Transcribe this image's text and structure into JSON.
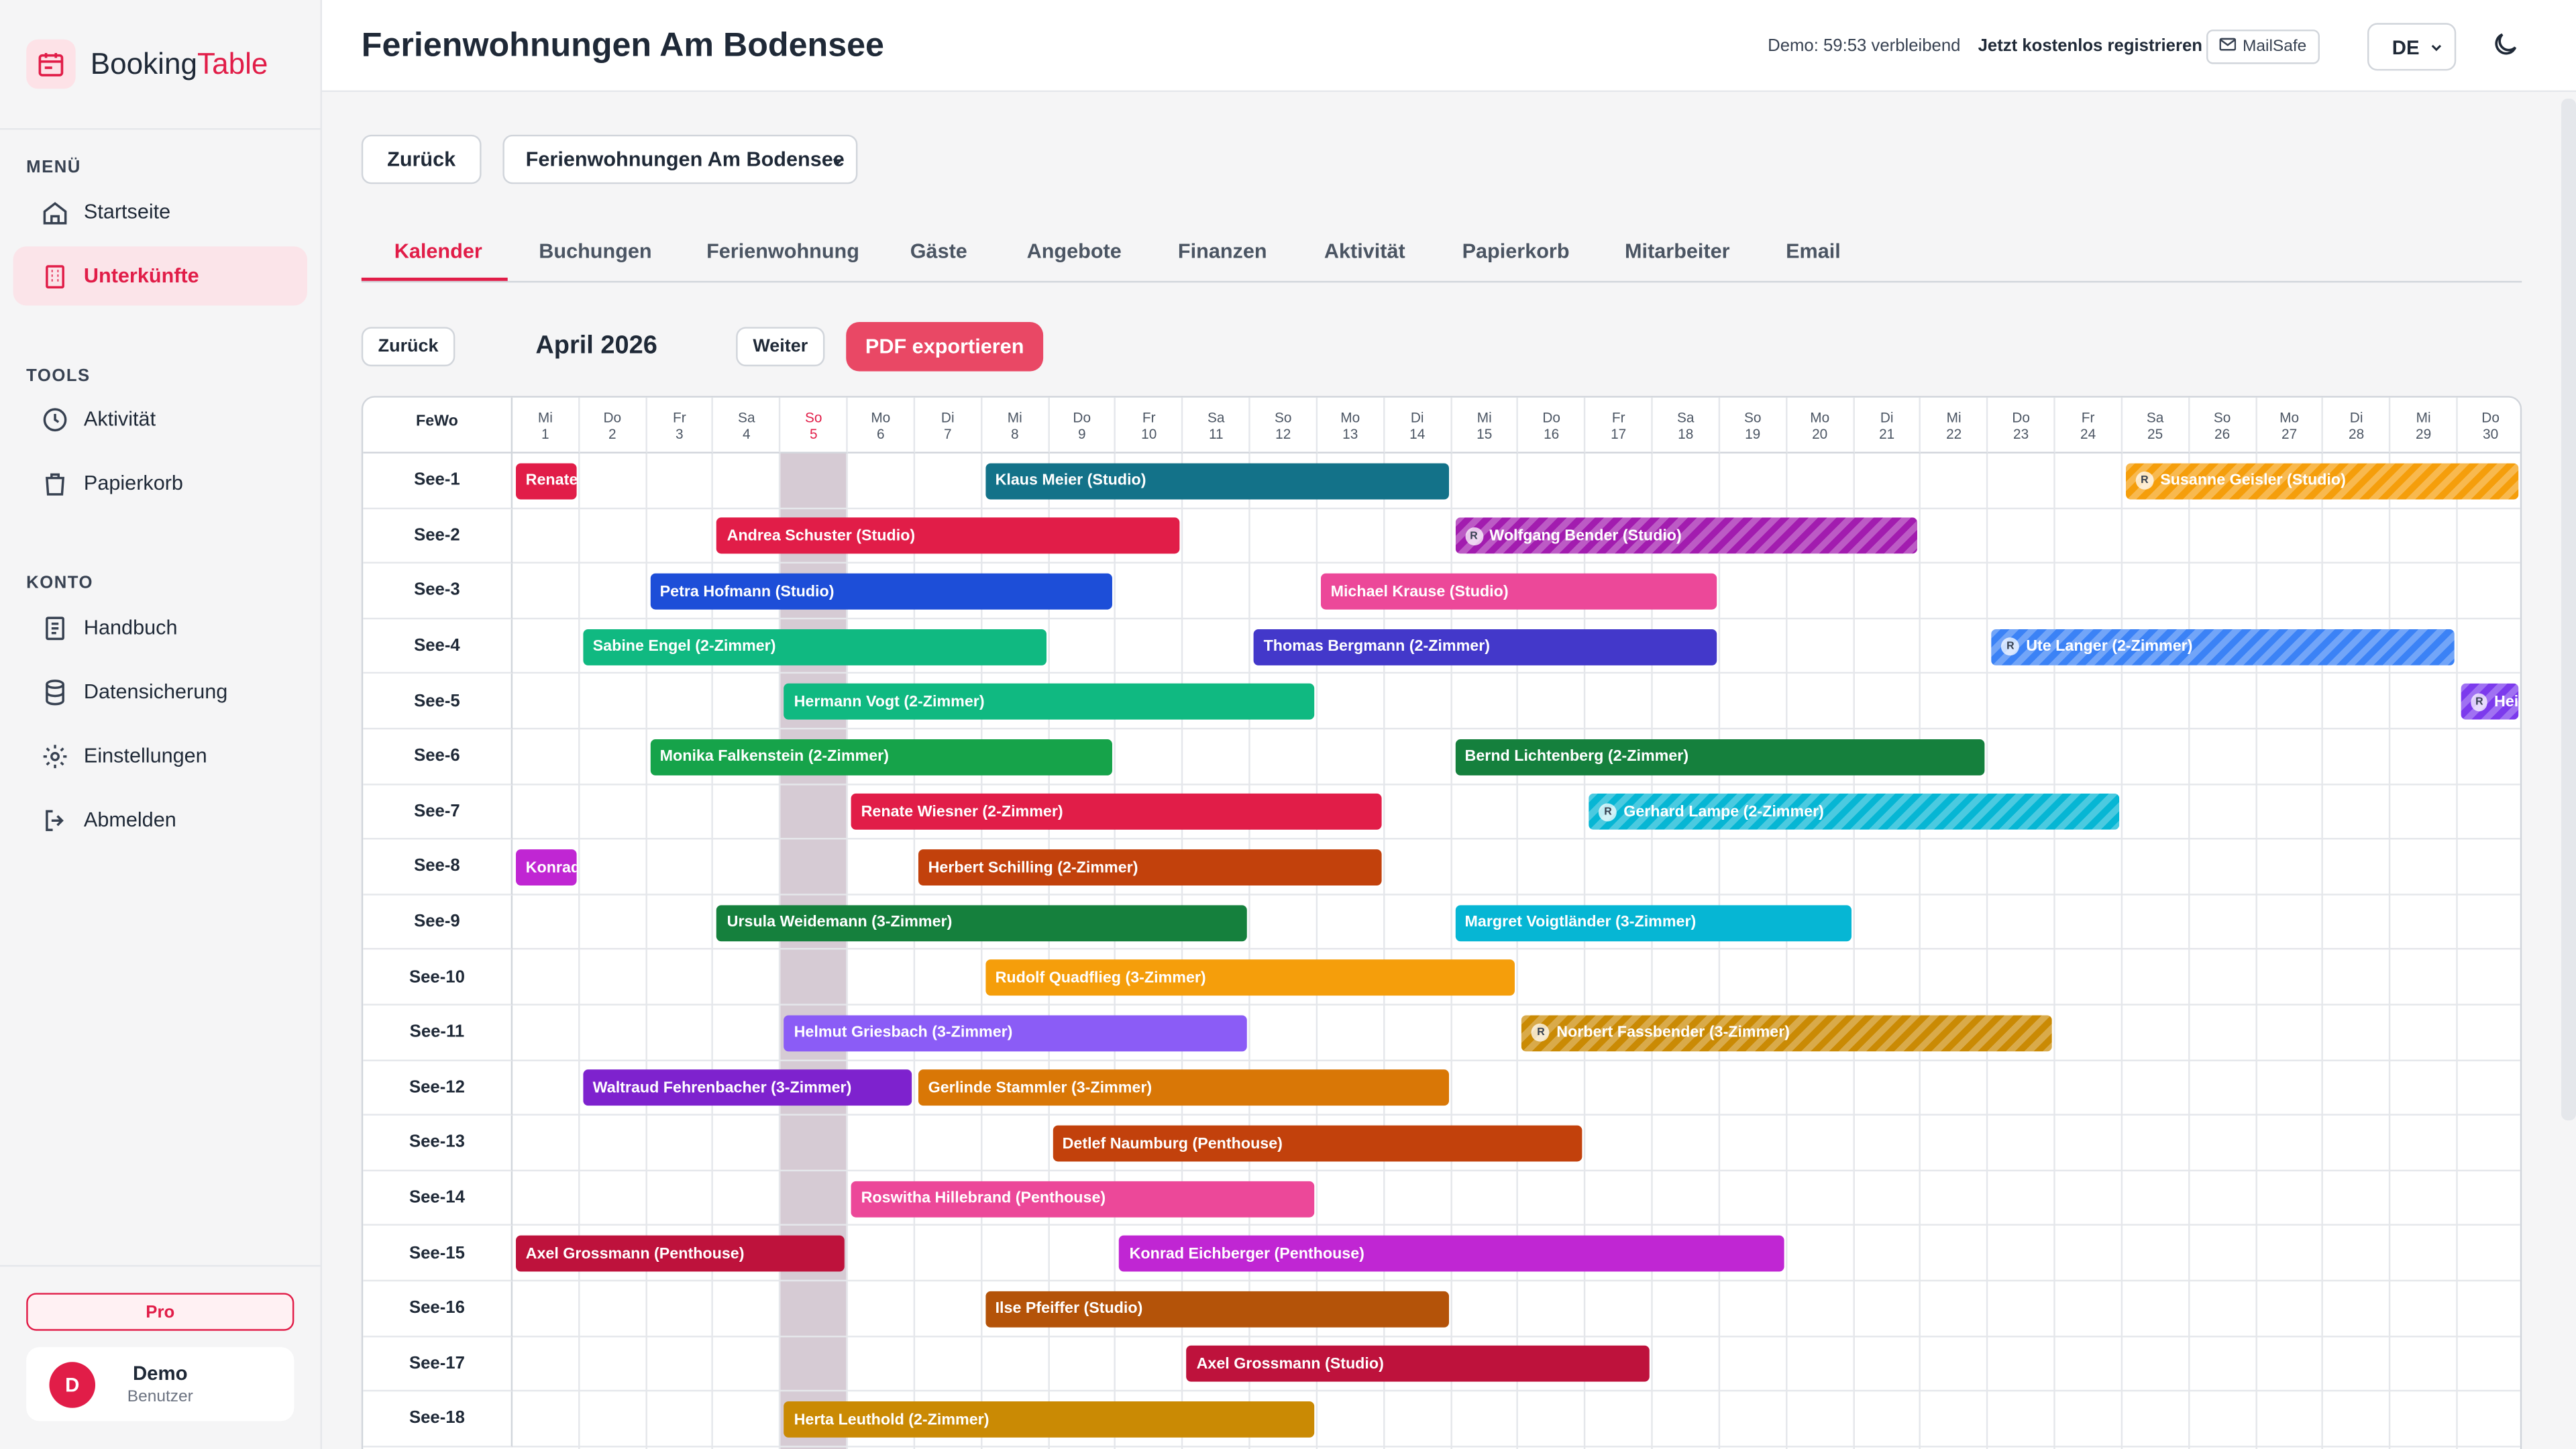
{
  "app": {
    "brand_main": "Booking",
    "brand_accent": "Table"
  },
  "sidebar": {
    "menu_title": "MENÜ",
    "menu_items": [
      {
        "label": "Startseite"
      },
      {
        "label": "Unterkünfte"
      }
    ],
    "tools_title": "TOOLS",
    "tools_items": [
      {
        "label": "Aktivität"
      },
      {
        "label": "Papierkorb"
      }
    ],
    "account_title": "KONTO",
    "account_items": [
      {
        "label": "Handbuch"
      },
      {
        "label": "Datensicherung"
      },
      {
        "label": "Einstellungen"
      },
      {
        "label": "Abmelden"
      }
    ],
    "plan_label": "Pro",
    "user": {
      "initial": "D",
      "name": "Demo",
      "role": "Benutzer"
    }
  },
  "header": {
    "title": "Ferienwohnungen Am Bodensee",
    "demo_text": "Demo: 59:53 verbleibend",
    "register_label": "Jetzt kostenlos registrieren",
    "mailsafe_label": "MailSafe",
    "language": "DE"
  },
  "toolbar": {
    "back_label": "Zurück",
    "property_select": "Ferienwohnungen Am Bodensee"
  },
  "tabs": [
    {
      "label": "Kalender"
    },
    {
      "label": "Buchungen"
    },
    {
      "label": "Ferienwohnung"
    },
    {
      "label": "Gäste"
    },
    {
      "label": "Angebote"
    },
    {
      "label": "Finanzen"
    },
    {
      "label": "Aktivität"
    },
    {
      "label": "Papierkorb"
    },
    {
      "label": "Mitarbeiter"
    },
    {
      "label": "Email"
    }
  ],
  "calendar": {
    "prev_label": "Zurück",
    "month_label": "April 2026",
    "next_label": "Weiter",
    "pdf_label": "PDF exportieren",
    "fewo_header": "FeWo",
    "days": [
      {
        "wd": "Mi",
        "d": "1"
      },
      {
        "wd": "Do",
        "d": "2"
      },
      {
        "wd": "Fr",
        "d": "3"
      },
      {
        "wd": "Sa",
        "d": "4"
      },
      {
        "wd": "So",
        "d": "5"
      },
      {
        "wd": "Mo",
        "d": "6"
      },
      {
        "wd": "Di",
        "d": "7"
      },
      {
        "wd": "Mi",
        "d": "8"
      },
      {
        "wd": "Do",
        "d": "9"
      },
      {
        "wd": "Fr",
        "d": "10"
      },
      {
        "wd": "Sa",
        "d": "11"
      },
      {
        "wd": "So",
        "d": "12"
      },
      {
        "wd": "Mo",
        "d": "13"
      },
      {
        "wd": "Di",
        "d": "14"
      },
      {
        "wd": "Mi",
        "d": "15"
      },
      {
        "wd": "Do",
        "d": "16"
      },
      {
        "wd": "Fr",
        "d": "17"
      },
      {
        "wd": "Sa",
        "d": "18"
      },
      {
        "wd": "So",
        "d": "19"
      },
      {
        "wd": "Mo",
        "d": "20"
      },
      {
        "wd": "Di",
        "d": "21"
      },
      {
        "wd": "Mi",
        "d": "22"
      },
      {
        "wd": "Do",
        "d": "23"
      },
      {
        "wd": "Fr",
        "d": "24"
      },
      {
        "wd": "Sa",
        "d": "25"
      },
      {
        "wd": "So",
        "d": "26"
      },
      {
        "wd": "Mo",
        "d": "27"
      },
      {
        "wd": "Di",
        "d": "28"
      },
      {
        "wd": "Mi",
        "d": "29"
      },
      {
        "wd": "Do",
        "d": "30"
      }
    ],
    "highlighted_day": "5",
    "rows": [
      "See-1",
      "See-2",
      "See-3",
      "See-4",
      "See-5",
      "See-6",
      "See-7",
      "See-8",
      "See-9",
      "See-10",
      "See-11",
      "See-12",
      "See-13",
      "See-14",
      "See-15",
      "See-16",
      "See-17",
      "See-18"
    ],
    "bookings": [
      {
        "row": "See-1",
        "label": "Renate",
        "start": 1,
        "end": 2,
        "color": "#e11d48",
        "reserved": false
      },
      {
        "row": "See-1",
        "label": "Klaus Meier (Studio)",
        "start": 8,
        "end": 15,
        "color": "#137289",
        "reserved": false
      },
      {
        "row": "See-1",
        "label": "Susanne Geisler (Studio)",
        "start": 25,
        "end": 31,
        "color": "#f59e0b",
        "reserved": true
      },
      {
        "row": "See-2",
        "label": "Andrea Schuster (Studio)",
        "start": 4,
        "end": 11,
        "color": "#e11d48",
        "reserved": false
      },
      {
        "row": "See-2",
        "label": "Wolfgang Bender (Studio)",
        "start": 15,
        "end": 22,
        "color": "#a21caf",
        "reserved": true
      },
      {
        "row": "See-3",
        "label": "Petra Hofmann (Studio)",
        "start": 3,
        "end": 10,
        "color": "#1d4ed8",
        "reserved": false
      },
      {
        "row": "See-3",
        "label": "Michael Krause (Studio)",
        "start": 13,
        "end": 19,
        "color": "#ec4899",
        "reserved": false
      },
      {
        "row": "See-4",
        "label": "Sabine Engel (2-Zimmer)",
        "start": 2,
        "end": 9,
        "color": "#10b981",
        "reserved": false
      },
      {
        "row": "See-4",
        "label": "Thomas Bergmann (2-Zimmer)",
        "start": 12,
        "end": 19,
        "color": "#4338ca",
        "reserved": false
      },
      {
        "row": "See-4",
        "label": "Ute Langer (2-Zimmer)",
        "start": 23,
        "end": 30,
        "color": "#3b82f6",
        "reserved": true
      },
      {
        "row": "See-5",
        "label": "Hermann Vogt (2-Zimmer)",
        "start": 5,
        "end": 13,
        "color": "#10b981",
        "reserved": false
      },
      {
        "row": "See-5",
        "label": "Hei",
        "start": 30,
        "end": 31,
        "color": "#7c3aed",
        "reserved": true
      },
      {
        "row": "See-6",
        "label": "Monika Falkenstein (2-Zimmer)",
        "start": 3,
        "end": 10,
        "color": "#16a34a",
        "reserved": false
      },
      {
        "row": "See-6",
        "label": "Bernd Lichtenberg (2-Zimmer)",
        "start": 15,
        "end": 23,
        "color": "#15803d",
        "reserved": false
      },
      {
        "row": "See-7",
        "label": "Renate Wiesner (2-Zimmer)",
        "start": 6,
        "end": 14,
        "color": "#e11d48",
        "reserved": false
      },
      {
        "row": "See-7",
        "label": "Gerhard Lampe (2-Zimmer)",
        "start": 17,
        "end": 25,
        "color": "#06b6d4",
        "reserved": true
      },
      {
        "row": "See-8",
        "label": "Konrad",
        "start": 1,
        "end": 2,
        "color": "#c026d3",
        "reserved": false
      },
      {
        "row": "See-8",
        "label": "Herbert Schilling (2-Zimmer)",
        "start": 7,
        "end": 14,
        "color": "#c2410c",
        "reserved": false
      },
      {
        "row": "See-9",
        "label": "Ursula Weidemann (3-Zimmer)",
        "start": 4,
        "end": 12,
        "color": "#15803d",
        "reserved": false
      },
      {
        "row": "See-9",
        "label": "Margret Voigtländer (3-Zimmer)",
        "start": 15,
        "end": 21,
        "color": "#06b6d4",
        "reserved": false
      },
      {
        "row": "See-10",
        "label": "Rudolf Quadflieg (3-Zimmer)",
        "start": 8,
        "end": 16,
        "color": "#f59e0b",
        "reserved": false
      },
      {
        "row": "See-11",
        "label": "Helmut Griesbach (3-Zimmer)",
        "start": 5,
        "end": 12,
        "color": "#8b5cf6",
        "reserved": false
      },
      {
        "row": "See-11",
        "label": "Norbert Fassbender (3-Zimmer)",
        "start": 16,
        "end": 24,
        "color": "#ca8a04",
        "reserved": true
      },
      {
        "row": "See-12",
        "label": "Waltraud Fehrenbacher (3-Zimmer)",
        "start": 2,
        "end": 7,
        "color": "#7e22ce",
        "reserved": false
      },
      {
        "row": "See-12",
        "label": "Gerlinde Stammler (3-Zimmer)",
        "start": 7,
        "end": 15,
        "color": "#d97706",
        "reserved": false
      },
      {
        "row": "See-13",
        "label": "Detlef Naumburg (Penthouse)",
        "start": 9,
        "end": 17,
        "color": "#c2410c",
        "reserved": false
      },
      {
        "row": "See-14",
        "label": "Roswitha Hillebrand (Penthouse)",
        "start": 6,
        "end": 13,
        "color": "#ec4899",
        "reserved": false
      },
      {
        "row": "See-15",
        "label": "Axel Grossmann (Penthouse)",
        "start": 1,
        "end": 6,
        "color": "#be123c",
        "reserved": false
      },
      {
        "row": "See-15",
        "label": "Konrad Eichberger (Penthouse)",
        "start": 10,
        "end": 20,
        "color": "#c026d3",
        "reserved": false
      },
      {
        "row": "See-16",
        "label": "Ilse Pfeiffer (Studio)",
        "start": 8,
        "end": 15,
        "color": "#b45309",
        "reserved": false
      },
      {
        "row": "See-17",
        "label": "Axel Grossmann (Studio)",
        "start": 11,
        "end": 18,
        "color": "#be123c",
        "reserved": false
      },
      {
        "row": "See-18",
        "label": "Herta Leuthold (2-Zimmer)",
        "start": 5,
        "end": 13,
        "color": "#ca8a04",
        "reserved": false
      }
    ]
  },
  "colors": {
    "accent": "#e11d48",
    "pdf_button": "#e94865",
    "sunday_shade": "#d6cbd4"
  }
}
